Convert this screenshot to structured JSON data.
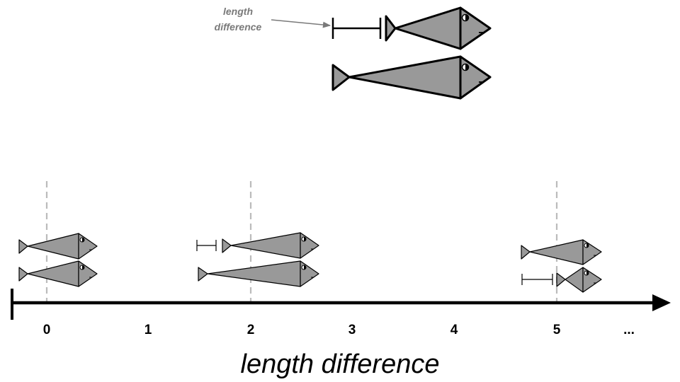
{
  "callout": {
    "line1": "length",
    "line2": "difference"
  },
  "axis": {
    "title": "length difference",
    "ticks": [
      "0",
      "1",
      "2",
      "3",
      "4",
      "5"
    ],
    "ellipsis": "..."
  },
  "colors": {
    "fish_fill": "#999999",
    "outline": "#000000",
    "guide": "#bbbbbb",
    "callout": "#7a7a7a"
  },
  "examples": [
    {
      "difference": 0
    },
    {
      "difference": 2
    },
    {
      "difference": 5
    }
  ]
}
